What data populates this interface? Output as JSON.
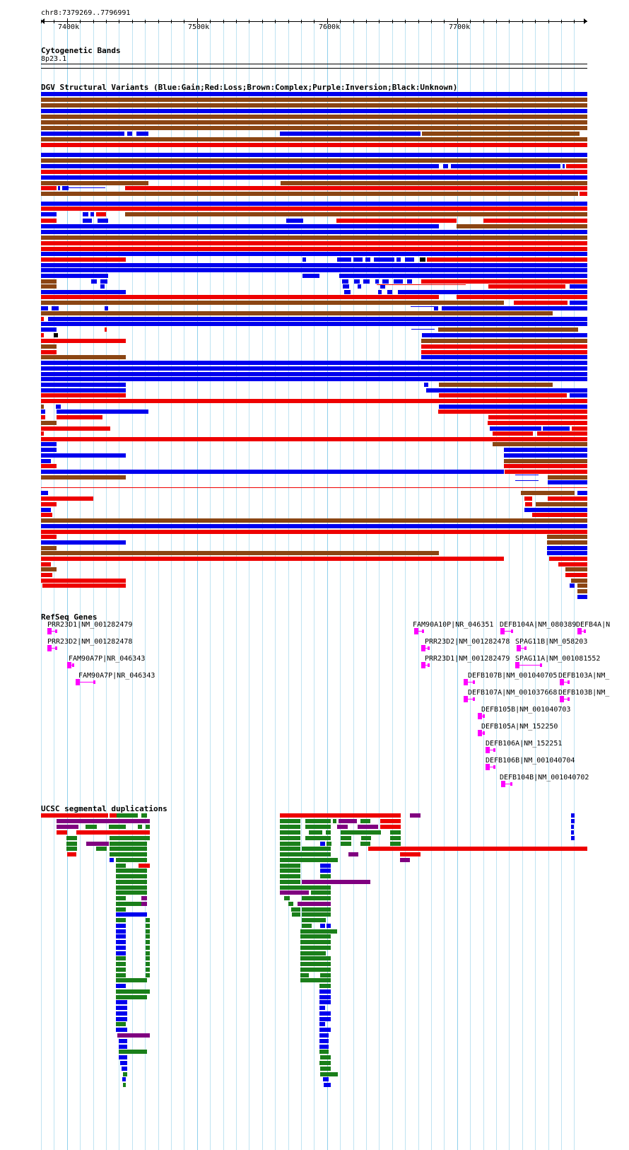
{
  "ruler": {
    "landmark": "chr8:7379269..7796991",
    "ticks": [
      "7400k",
      "7500k",
      "7600k",
      "7700k"
    ]
  },
  "cytoband": {
    "title": "Cytogenetic Bands",
    "band": "8p23.1"
  },
  "dgv": {
    "title": "DGV Structural Variants (Blue:Gain;Red:Loss;Brown:Complex;Purple:Inversion;Black:Unknown)",
    "colors": {
      "gain": "#0000ee",
      "loss": "#ee0000",
      "complex": "#8b4513",
      "inversion": "#800080",
      "unknown": "#000000"
    }
  },
  "refseq": {
    "title": "RefSeq Genes",
    "color": "#ff00ff",
    "genes": [
      "PRR23D1|NM_001282479",
      "PRR23D2|NM_001282478",
      "FAM90A7P|NR_046343",
      "FAM90A7P|NR_046343",
      "FAM90A10P|NR_046351",
      "PRR23D2|NM_001282478",
      "PRR23D1|NM_001282479",
      "DEFB104A|NM_080389",
      "DEFB4A|N",
      "SPAG11B|NM_058203",
      "SPAG11A|NM_001081552",
      "DEFB107B|NM_001040705",
      "DEFB107A|NM_001037668",
      "DEFB103A|NM_",
      "DEFB103B|NM_",
      "DEFB105B|NM_001040703",
      "DEFB105A|NM_152250",
      "DEFB106A|NM_152251",
      "DEFB106B|NM_001040704",
      "DEFB104B|NM_001040702"
    ]
  },
  "segdups": {
    "title": "UCSC segmental duplications",
    "colors": {
      "red": "#ee0000",
      "green": "#1a7f1a",
      "blue": "#0000ee",
      "purple": "#800080"
    }
  }
}
